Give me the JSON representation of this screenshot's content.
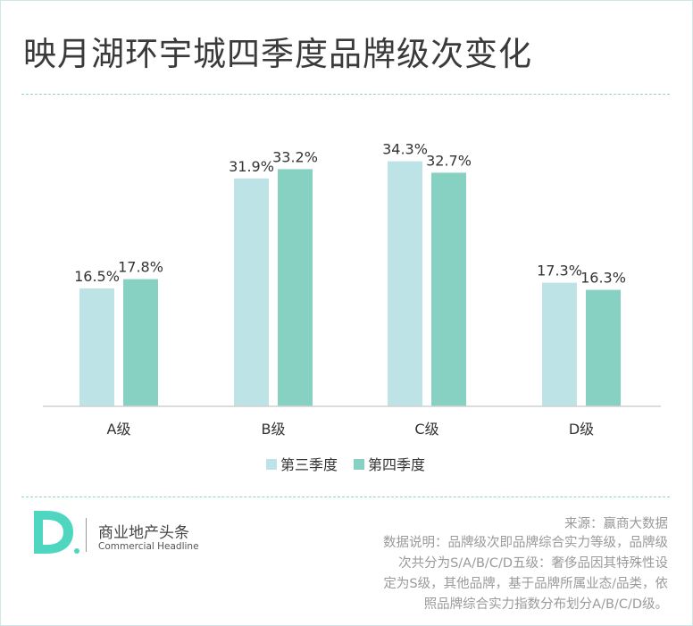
{
  "title": "映月湖环宇城四季度品牌级次变化",
  "colors": {
    "series_q3": "#bde3e6",
    "series_q4": "#86d1c1",
    "divider": "#8fd6c8",
    "logo": "#4fd6c0"
  },
  "chart_data": {
    "type": "bar",
    "categories": [
      "A级",
      "B级",
      "C级",
      "D级"
    ],
    "series": [
      {
        "name": "第三季度",
        "values": [
          16.5,
          31.9,
          34.3,
          17.3
        ],
        "labels": [
          "16.5%",
          "31.9%",
          "34.3%",
          "17.3%"
        ]
      },
      {
        "name": "第四季度",
        "values": [
          17.8,
          33.2,
          32.7,
          16.3
        ],
        "labels": [
          "17.8%",
          "33.2%",
          "32.7%",
          "16.3%"
        ]
      }
    ],
    "ylim": [
      0,
      40
    ],
    "grid": false,
    "legend_position": "bottom",
    "xlabel": "",
    "ylabel": ""
  },
  "footer": {
    "brand_cn": "商业地产头条",
    "brand_en": "Commercial Headline",
    "source": "来源：赢商大数据",
    "note_lines": [
      "数据说明：品牌级次即品牌综合实力等级，品牌级",
      "次共分为S/A/B/C/D五级：奢侈品因其特殊性设",
      "定为S级，其他品牌，基于品牌所属业态/品类，依",
      "照品牌综合实力指数分布划分A/B/C/D级。"
    ]
  }
}
